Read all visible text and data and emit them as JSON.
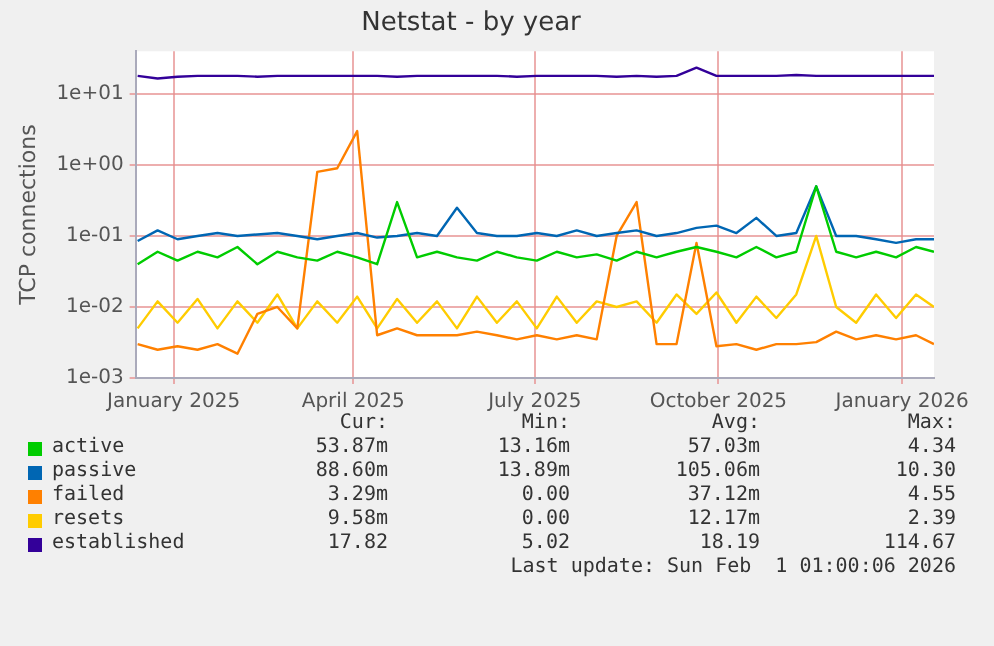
{
  "chart_data": {
    "type": "line",
    "title": "Netstat - by year",
    "ylabel": "TCP connections",
    "log": "y",
    "grid": true,
    "legend": "bottom",
    "marker": "none",
    "line_style": "solid",
    "x": [
      "2024-12-29",
      "2025-01-08",
      "2025-01-18",
      "2025-01-28",
      "2025-02-07",
      "2025-02-17",
      "2025-02-27",
      "2025-03-09",
      "2025-03-19",
      "2025-03-29",
      "2025-04-08",
      "2025-04-18",
      "2025-04-28",
      "2025-05-08",
      "2025-05-18",
      "2025-05-28",
      "2025-06-07",
      "2025-06-17",
      "2025-06-27",
      "2025-07-07",
      "2025-07-17",
      "2025-07-27",
      "2025-08-06",
      "2025-08-16",
      "2025-08-26",
      "2025-09-05",
      "2025-09-15",
      "2025-09-25",
      "2025-10-05",
      "2025-10-15",
      "2025-10-25",
      "2025-11-04",
      "2025-11-14",
      "2025-11-24",
      "2025-12-04",
      "2025-12-14",
      "2025-12-24",
      "2026-01-03",
      "2026-01-13",
      "2026-01-23",
      "2026-02-01"
    ],
    "xlim": [
      "2024-12-28",
      "2026-02-01"
    ],
    "xticks": [
      {
        "value": "2025-01-16",
        "label": "January 2025"
      },
      {
        "value": "2025-04-16",
        "label": "April 2025"
      },
      {
        "value": "2025-07-16",
        "label": "July 2025"
      },
      {
        "value": "2025-10-16",
        "label": "October 2025"
      },
      {
        "value": "2026-01-16",
        "label": "January 2026"
      }
    ],
    "ylim": [
      0.001,
      40
    ],
    "yticks": [
      {
        "value": 0.001,
        "label": "1e-03"
      },
      {
        "value": 0.01,
        "label": "1e-02"
      },
      {
        "value": 0.1,
        "label": "1e-01"
      },
      {
        "value": 1,
        "label": "1e+00"
      },
      {
        "value": 10,
        "label": "1e+01"
      }
    ],
    "series": [
      {
        "name": "active",
        "color": "#00cc00",
        "values": [
          0.04,
          0.06,
          0.045,
          0.06,
          0.05,
          0.07,
          0.04,
          0.06,
          0.05,
          0.045,
          0.06,
          0.05,
          0.04,
          0.3,
          0.05,
          0.06,
          0.05,
          0.045,
          0.06,
          0.05,
          0.045,
          0.06,
          0.05,
          0.055,
          0.045,
          0.06,
          0.05,
          0.06,
          0.07,
          0.06,
          0.05,
          0.07,
          0.05,
          0.06,
          0.5,
          0.06,
          0.05,
          0.06,
          0.05,
          0.07,
          0.06
        ]
      },
      {
        "name": "passive",
        "color": "#0066b3",
        "values": [
          0.085,
          0.12,
          0.09,
          0.1,
          0.11,
          0.1,
          0.105,
          0.11,
          0.1,
          0.09,
          0.1,
          0.11,
          0.095,
          0.1,
          0.11,
          0.1,
          0.25,
          0.11,
          0.1,
          0.1,
          0.11,
          0.1,
          0.12,
          0.1,
          0.11,
          0.12,
          0.1,
          0.11,
          0.13,
          0.14,
          0.11,
          0.18,
          0.1,
          0.11,
          0.5,
          0.1,
          0.1,
          0.09,
          0.08,
          0.09,
          0.09
        ]
      },
      {
        "name": "failed",
        "color": "#ff8000",
        "values": [
          0.003,
          0.0025,
          0.0028,
          0.0025,
          0.003,
          0.0022,
          0.008,
          0.01,
          0.005,
          0.8,
          0.9,
          3,
          0.004,
          0.005,
          0.004,
          0.004,
          0.004,
          0.0045,
          0.004,
          0.0035,
          0.004,
          0.0035,
          0.004,
          0.0035,
          0.1,
          0.3,
          0.003,
          0.003,
          0.08,
          0.0028,
          0.003,
          0.0025,
          0.003,
          0.003,
          0.0032,
          0.0045,
          0.0035,
          0.004,
          0.0035,
          0.004,
          0.003
        ]
      },
      {
        "name": "resets",
        "color": "#ffcc00",
        "values": [
          0.005,
          0.012,
          0.006,
          0.013,
          0.005,
          0.012,
          0.006,
          0.015,
          0.005,
          0.012,
          0.006,
          0.014,
          0.005,
          0.013,
          0.006,
          0.012,
          0.005,
          0.014,
          0.006,
          0.012,
          0.005,
          0.014,
          0.006,
          0.012,
          0.01,
          0.012,
          0.006,
          0.015,
          0.008,
          0.016,
          0.006,
          0.014,
          0.007,
          0.015,
          0.1,
          0.01,
          0.006,
          0.015,
          0.007,
          0.015,
          0.01
        ]
      },
      {
        "name": "established",
        "color": "#330099",
        "values": [
          18,
          16.5,
          17.5,
          18,
          18,
          18,
          17.5,
          18,
          18,
          18,
          18,
          18,
          18,
          17.5,
          18,
          18,
          18,
          18,
          18,
          17.5,
          18,
          18,
          18,
          18,
          17.5,
          18,
          17.5,
          18,
          23.5,
          18,
          18,
          18,
          18,
          18.5,
          18,
          18,
          18,
          18,
          18,
          18,
          18
        ]
      }
    ],
    "annotations": [
      "Cur:",
      "Min:",
      "Avg:",
      "Max:",
      "53.87m",
      "13.16m",
      "57.03m",
      "4.34",
      "88.60m",
      "13.89m",
      "105.06m",
      "10.30",
      "3.29m",
      "0.00",
      "37.12m",
      "4.55",
      "9.58m",
      "0.00",
      "12.17m",
      "2.39",
      "17.82",
      "5.02",
      "18.19",
      "114.67",
      "Last update: Sun Feb  1 01:00:06 2026"
    ]
  }
}
